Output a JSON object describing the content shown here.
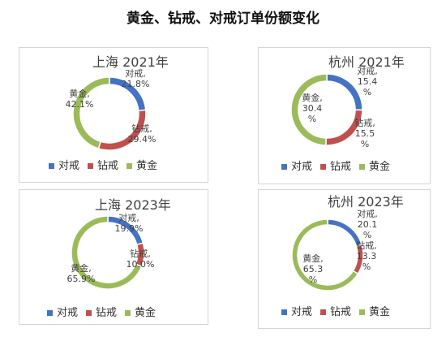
{
  "page": {
    "title": "黄金、钻戒、对戒订单份额变化"
  },
  "colors": {
    "对戒": "#4472C4",
    "钻戒": "#C0504D",
    "黄金": "#9BBB59"
  },
  "legend": [
    "对戒",
    "钻戒",
    "黄金"
  ],
  "chart_data": [
    {
      "type": "pie",
      "title": "上海  2021年",
      "categories": [
        "对戒",
        "钻戒",
        "黄金"
      ],
      "values": [
        21.8,
        29.4,
        42.1
      ],
      "labels": [
        [
          "对戒,",
          "21.8%"
        ],
        [
          "钻戒,",
          "29.4%"
        ],
        [
          "黄金,",
          "42.1%"
        ]
      ]
    },
    {
      "type": "pie",
      "title": "杭州  2021年",
      "categories": [
        "对戒",
        "钻戒",
        "黄金"
      ],
      "values": [
        15.4,
        15.5,
        30.4
      ],
      "labels": [
        [
          "对戒,",
          "15.4",
          "%"
        ],
        [
          "钻戒,",
          "15.5",
          "%"
        ],
        [
          "黄金,",
          "30.4",
          "%"
        ]
      ]
    },
    {
      "type": "pie",
      "title": "上海  2023年",
      "categories": [
        "对戒",
        "钻戒",
        "黄金"
      ],
      "values": [
        19.9,
        10.0,
        65.9
      ],
      "labels": [
        [
          "对戒,",
          "19.9%"
        ],
        [
          "钻戒,",
          "10.0%"
        ],
        [
          "黄金,",
          "65.9%"
        ]
      ]
    },
    {
      "type": "pie",
      "title": "杭州  2023年",
      "categories": [
        "对戒",
        "钻戒",
        "黄金"
      ],
      "values": [
        20.1,
        13.3,
        65.3
      ],
      "labels": [
        [
          "对戒,",
          "20.1",
          "%"
        ],
        [
          "钻戒,",
          "13.3",
          "%"
        ],
        [
          "黄金,",
          "65.3",
          "%"
        ]
      ]
    }
  ]
}
